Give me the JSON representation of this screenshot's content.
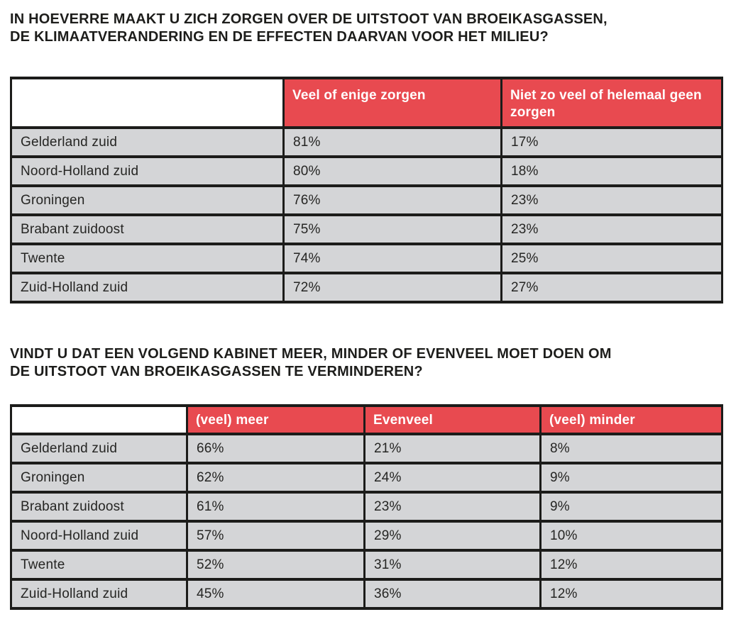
{
  "colors": {
    "header_bg": "#e84a50",
    "header_text": "#ffffff",
    "row_bg": "#d4d5d7",
    "border": "#1c1c1a",
    "title_text": "#1d1d1b"
  },
  "tables": [
    {
      "title": "IN HOEVERRE MAAKT U ZICH ZORGEN OVER DE UITSTOOT VAN BROEIKASGASSEN, DE KLIMAATVERANDERING EN DE EFFECTEN DAARVAN VOOR HET MILIEU?",
      "title_lines": [
        "IN HOEVERRE MAAKT U ZICH ZORGEN OVER DE UITSTOOT VAN BROEIKASGASSEN,",
        "DE KLIMAATVERANDERING EN DE EFFECTEN DAARVAN VOOR HET MILIEU?"
      ],
      "columns": [
        "Veel of enige zorgen",
        "Niet zo veel of helemaal geen zorgen"
      ],
      "rows": [
        {
          "label": "Gelderland zuid",
          "values": [
            "81%",
            "17%"
          ]
        },
        {
          "label": "Noord-Holland zuid",
          "values": [
            "80%",
            "18%"
          ]
        },
        {
          "label": "Groningen",
          "values": [
            "76%",
            "23%"
          ]
        },
        {
          "label": "Brabant zuidoost",
          "values": [
            "75%",
            "23%"
          ]
        },
        {
          "label": "Twente",
          "values": [
            "74%",
            "25%"
          ]
        },
        {
          "label": "Zuid-Holland zuid",
          "values": [
            "72%",
            "27%"
          ]
        }
      ]
    },
    {
      "title": "VINDT U DAT EEN VOLGEND KABINET MEER, MINDER OF EVENVEEL MOET DOEN OM DE UITSTOOT VAN BROEIKASGASSEN TE VERMINDEREN?",
      "title_lines": [
        "VINDT U DAT EEN VOLGEND KABINET MEER, MINDER OF EVENVEEL MOET DOEN OM",
        "DE UITSTOOT VAN BROEIKASGASSEN TE VERMINDEREN?"
      ],
      "columns": [
        "(veel) meer",
        "Evenveel",
        "(veel) minder"
      ],
      "rows": [
        {
          "label": "Gelderland zuid",
          "values": [
            "66%",
            "21%",
            "8%"
          ]
        },
        {
          "label": "Groningen",
          "values": [
            "62%",
            "24%",
            "9%"
          ]
        },
        {
          "label": "Brabant zuidoost",
          "values": [
            "61%",
            "23%",
            "9%"
          ]
        },
        {
          "label": "Noord-Holland zuid",
          "values": [
            "57%",
            "29%",
            "10%"
          ]
        },
        {
          "label": "Twente",
          "values": [
            "52%",
            "31%",
            "12%"
          ]
        },
        {
          "label": "Zuid-Holland zuid",
          "values": [
            "45%",
            "36%",
            "12%"
          ]
        }
      ]
    }
  ]
}
